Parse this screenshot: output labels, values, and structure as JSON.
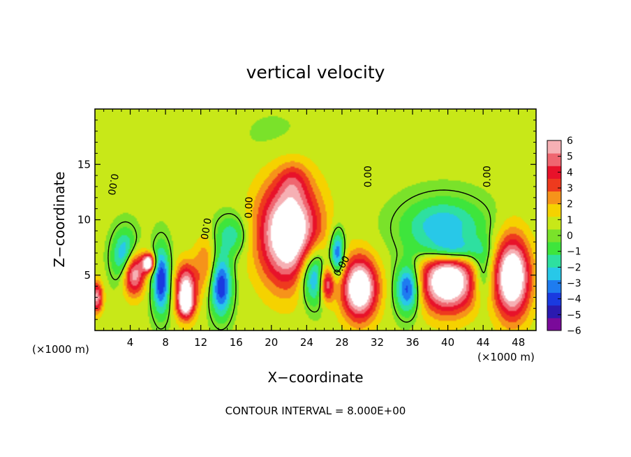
{
  "chart_data": {
    "type": "heatmap",
    "title": "vertical velocity",
    "xlabel": "X−coordinate",
    "ylabel": "Z−coordinate",
    "x_unit_left": "(×1000 m)",
    "x_unit_right": "(×1000 m)",
    "footer": "CONTOUR INTERVAL = 8.000E+00",
    "xlim": [
      0,
      50
    ],
    "ylim": [
      0,
      20
    ],
    "x_ticks": [
      "4",
      "8",
      "12",
      "16",
      "20",
      "24",
      "28",
      "32",
      "36",
      "40",
      "44",
      "48"
    ],
    "y_ticks": [
      "5",
      "10",
      "15"
    ],
    "colorbar": {
      "ticks": [
        "6",
        "5",
        "4",
        "3",
        "2",
        "1",
        "0",
        "−1",
        "−2",
        "−3",
        "−4",
        "−5",
        "−6"
      ],
      "range": [
        -6,
        6
      ],
      "colors": [
        "#7a0a9a",
        "#2a1ab0",
        "#1a3ae0",
        "#1e7cf0",
        "#28c8e8",
        "#2ee0a0",
        "#3ee53c",
        "#7ae22a",
        "#c8e818",
        "#f5d200",
        "#f6931a",
        "#ee3a1e",
        "#e8122a",
        "#ef6670",
        "#f6b0b4"
      ],
      "out_of_range_high": "#ffffff"
    },
    "contour_labels": [
      {
        "text": "0.00",
        "x": 2,
        "y": 13.2,
        "angle": 100
      },
      {
        "text": "0.00",
        "x": 12.5,
        "y": 9.2,
        "angle": 100
      },
      {
        "text": "0.00",
        "x": 17.5,
        "y": 11.1,
        "angle": -88
      },
      {
        "text": "0.00",
        "x": 28,
        "y": 5.8,
        "angle": -60
      },
      {
        "text": "0.00",
        "x": 31,
        "y": 13.9,
        "angle": -90
      },
      {
        "text": "0.00",
        "x": 44.5,
        "y": 13.9,
        "angle": -90
      }
    ],
    "field": {
      "background": 0.6,
      "blobs": [
        {
          "x": 22,
          "y": 8.8,
          "sx": 3.4,
          "sy": 4.6,
          "v": 7.8
        },
        {
          "x": 22.5,
          "y": 13.5,
          "sx": 1.6,
          "sy": 1.6,
          "v": 1.6
        },
        {
          "x": 30,
          "y": 3.8,
          "sx": 2.0,
          "sy": 2.8,
          "v": 7.6
        },
        {
          "x": 47.3,
          "y": 4.8,
          "sx": 2.0,
          "sy": 3.6,
          "v": 7.8
        },
        {
          "x": 40,
          "y": 4.5,
          "sx": 3.2,
          "sy": 2.8,
          "v": 7.8
        },
        {
          "x": 4.3,
          "y": 5.3,
          "sx": 1.3,
          "sy": 2.0,
          "v": 7.2
        },
        {
          "x": 6.1,
          "y": 6.1,
          "sx": 0.7,
          "sy": 0.8,
          "v": 7.2
        },
        {
          "x": 10.3,
          "y": 3.6,
          "sx": 1.2,
          "sy": 2.3,
          "v": 6.4
        },
        {
          "x": 10.3,
          "y": 2.2,
          "sx": 0.8,
          "sy": 1.0,
          "v": 3.0
        },
        {
          "x": 12.5,
          "y": 6.0,
          "sx": 1.2,
          "sy": 2.5,
          "v": 2.2
        },
        {
          "x": 26.3,
          "y": 4.2,
          "sx": 0.8,
          "sy": 1.6,
          "v": 5.0
        },
        {
          "x": 0.2,
          "y": 3.0,
          "sx": 0.7,
          "sy": 1.4,
          "v": 5.0
        },
        {
          "x": 3.5,
          "y": 6.5,
          "sx": 1.4,
          "sy": 2.3,
          "v": -5.0
        },
        {
          "x": 7.5,
          "y": 4.5,
          "sx": 1.0,
          "sy": 3.0,
          "v": -5.0
        },
        {
          "x": 14.3,
          "y": 4.0,
          "sx": 1.2,
          "sy": 2.7,
          "v": -5.0
        },
        {
          "x": 15.5,
          "y": 8.6,
          "sx": 1.8,
          "sy": 1.8,
          "v": -2.4
        },
        {
          "x": 24.8,
          "y": 5.0,
          "sx": 1.6,
          "sy": 2.6,
          "v": -5.0
        },
        {
          "x": 27.5,
          "y": 7.0,
          "sx": 0.8,
          "sy": 2.0,
          "v": -4.5
        },
        {
          "x": 35.5,
          "y": 3.8,
          "sx": 1.4,
          "sy": 2.2,
          "v": -5.2
        },
        {
          "x": 39.5,
          "y": 9.2,
          "sx": 4.5,
          "sy": 2.6,
          "v": -3.6
        },
        {
          "x": 40.5,
          "y": 7.2,
          "sx": 3.0,
          "sy": 1.1,
          "v": -3.2
        },
        {
          "x": 44,
          "y": 5.0,
          "sx": 1.2,
          "sy": 2.5,
          "v": -2.5
        },
        {
          "x": 20.5,
          "y": 17.5,
          "sx": 4.0,
          "sy": 2.5,
          "v": -0.4
        }
      ]
    }
  }
}
